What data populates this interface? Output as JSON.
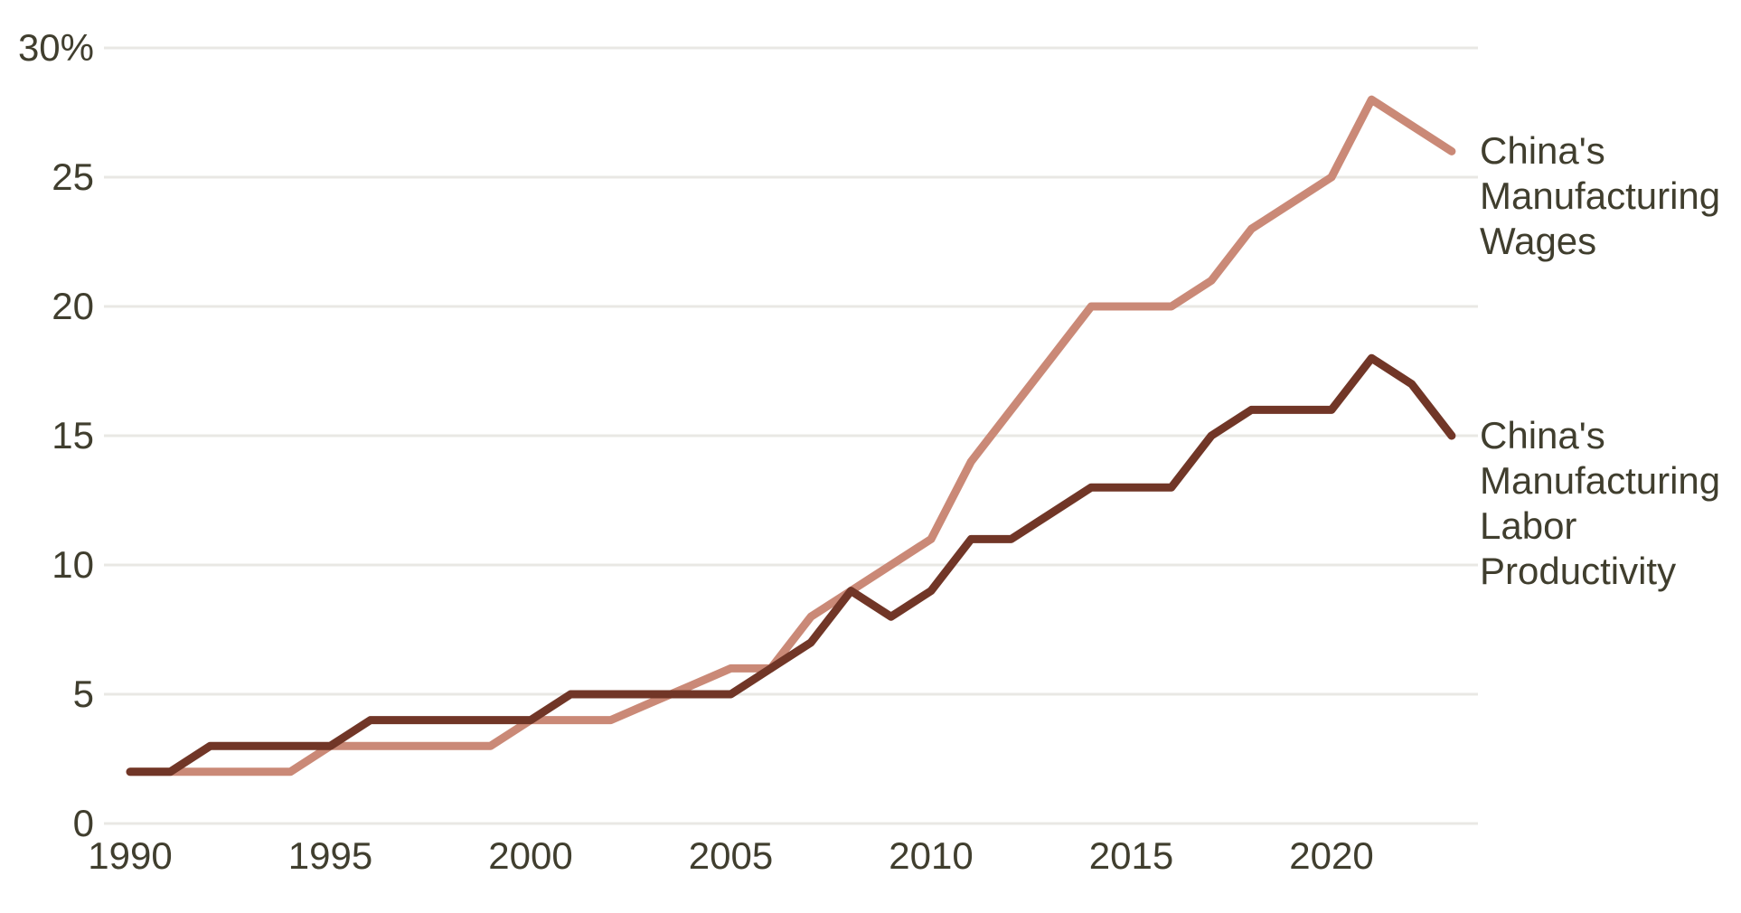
{
  "chart_data": {
    "type": "line",
    "title": "",
    "x": [
      1990,
      1991,
      1992,
      1993,
      1994,
      1995,
      1996,
      1997,
      1998,
      1999,
      2000,
      2001,
      2002,
      2003,
      2004,
      2005,
      2006,
      2007,
      2008,
      2009,
      2010,
      2011,
      2012,
      2013,
      2014,
      2015,
      2016,
      2017,
      2018,
      2019,
      2020,
      2021,
      2022,
      2023
    ],
    "series": [
      {
        "name": "China's Manufacturing Wages",
        "label_lines": [
          "China's",
          "Manufacturing",
          "Wages"
        ],
        "color": "#ca8977",
        "values": [
          2,
          2,
          2,
          2,
          2,
          3,
          3,
          3,
          3,
          3,
          4,
          4,
          4,
          4.67,
          5.33,
          6,
          6,
          8,
          9,
          10,
          11,
          14,
          16,
          18,
          20,
          20,
          20,
          21,
          23,
          24,
          25,
          28,
          27,
          26
        ]
      },
      {
        "name": "China's Manufacturing Labor Productivity",
        "label_lines": [
          "China's",
          "Manufacturing",
          "Labor",
          "Productivity"
        ],
        "color": "#713627",
        "values": [
          2,
          2,
          3,
          3,
          3,
          3,
          4,
          4,
          4,
          4,
          4,
          5,
          5,
          5,
          5,
          5,
          6,
          7,
          9,
          8,
          9,
          11,
          11,
          12,
          13,
          13,
          13,
          15,
          16,
          16,
          16,
          18,
          17,
          15
        ]
      }
    ],
    "ylim": [
      0,
      30
    ],
    "y_ticks": [
      {
        "value": 0,
        "label": "0"
      },
      {
        "value": 5,
        "label": "5"
      },
      {
        "value": 10,
        "label": "10"
      },
      {
        "value": 15,
        "label": "15"
      },
      {
        "value": 20,
        "label": "20"
      },
      {
        "value": 25,
        "label": "25"
      },
      {
        "value": 30,
        "label": "30%"
      }
    ],
    "x_ticks": [
      {
        "value": 1990,
        "label": "1990"
      },
      {
        "value": 1995,
        "label": "1995"
      },
      {
        "value": 2000,
        "label": "2000"
      },
      {
        "value": 2005,
        "label": "2005"
      },
      {
        "value": 2010,
        "label": "2010"
      },
      {
        "value": 2015,
        "label": "2015"
      },
      {
        "value": 2020,
        "label": "2020"
      }
    ],
    "grid": "horizontal",
    "legend_position": "right-end-labels"
  },
  "colors": {
    "background": "#ffffff",
    "text": "#403e2e",
    "gridline": "#e9e8e4",
    "wages_line": "#ca8977",
    "productivity_line": "#713627"
  }
}
